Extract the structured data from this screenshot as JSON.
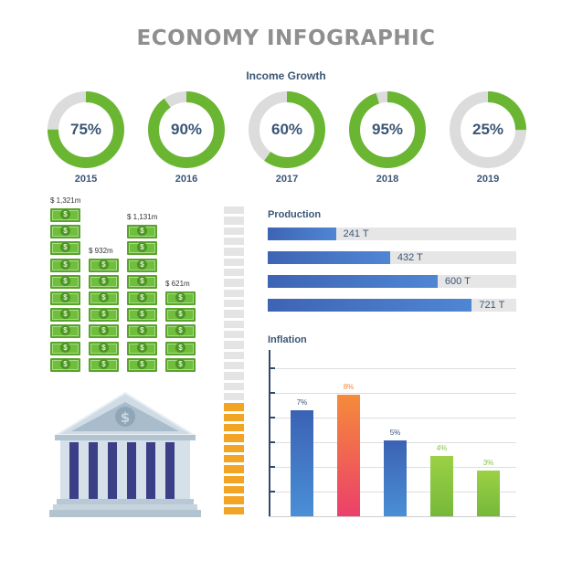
{
  "title": "ECONOMY INFOGRAPHIC",
  "chart_data": [
    {
      "type": "pie",
      "title": "Income Growth",
      "categories": [
        "2015",
        "2016",
        "2017",
        "2018",
        "2019"
      ],
      "labels": [
        "75%",
        "90%",
        "60%",
        "95%",
        "25%"
      ],
      "values": [
        75,
        90,
        60,
        95,
        25
      ]
    },
    {
      "type": "bar",
      "title": "",
      "categories": [
        "1",
        "2",
        "3",
        "4"
      ],
      "labels": [
        "$ 1,321m",
        "$ 932m",
        "$ 1,131m",
        "$ 621m"
      ],
      "values": [
        1321,
        932,
        1131,
        621
      ]
    },
    {
      "type": "bar",
      "title": "Production",
      "orientation": "horizontal",
      "labels": [
        "241 T",
        "432 T",
        "600 T",
        "721 T"
      ],
      "values": [
        241,
        432,
        600,
        721
      ]
    },
    {
      "type": "bar",
      "title": "Inflation",
      "labels": [
        "7%",
        "8%",
        "5%",
        "4%",
        "3%"
      ],
      "values": [
        7,
        8,
        5,
        4,
        3
      ],
      "colors": [
        "#3c66b8",
        "#ee5566",
        "#3c66b8",
        "#86c440",
        "#86c440"
      ],
      "label_colors": [
        "#3b5675",
        "#ee8a3a",
        "#3b5675",
        "#86c440",
        "#86c440"
      ]
    }
  ],
  "colors": {
    "green": "#6ab632",
    "gray": "#dcdcdc",
    "navy": "#3b5675",
    "orange": "#f2a424"
  },
  "meter": {
    "segments": 30,
    "filled": 11
  },
  "icons": {
    "bank": "bank-building-icon",
    "cash": "banknote-icon"
  }
}
